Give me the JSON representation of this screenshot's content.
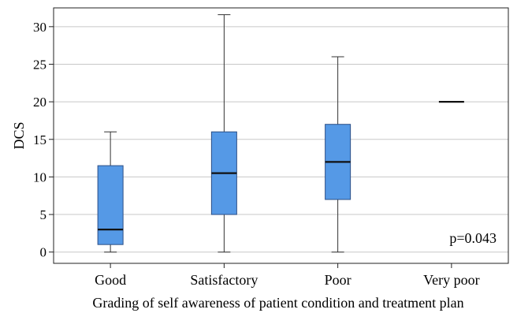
{
  "chart_data": {
    "type": "box",
    "xlabel": "Grading of self awareness of patient condition and treatment plan",
    "ylabel": "DCS",
    "ylim": [
      -1.5,
      32.5
    ],
    "yticks": [
      0,
      5,
      10,
      15,
      20,
      25,
      30
    ],
    "grid": true,
    "categories": [
      "Good",
      "Satisfactory",
      "Poor",
      "Very poor"
    ],
    "boxes": [
      {
        "category": "Good",
        "min": 0,
        "q1": 1,
        "median": 3,
        "q3": 11.5,
        "max": 16
      },
      {
        "category": "Satisfactory",
        "min": 0,
        "q1": 5,
        "median": 10.5,
        "q3": 16,
        "max": 31.6
      },
      {
        "category": "Poor",
        "min": 0,
        "q1": 7,
        "median": 12,
        "q3": 17,
        "max": 26
      },
      {
        "category": "Very poor",
        "min": 20,
        "q1": 20,
        "median": 20,
        "q3": 20,
        "max": 20
      }
    ],
    "annotation": "p=0.043",
    "colors": {
      "box_fill": "#5599e6",
      "box_stroke": "#2c4f86",
      "grid": "#c8c8c8",
      "whisker": "#333333"
    }
  }
}
